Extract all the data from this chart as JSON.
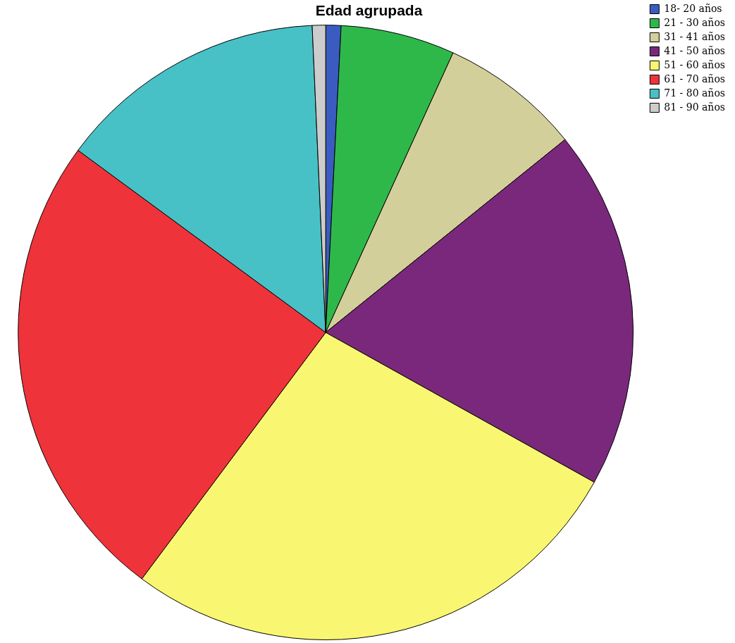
{
  "chart_data": {
    "type": "pie",
    "title": "Edad agrupada",
    "categories": [
      "18- 20 años",
      "21 - 30 años",
      "31 - 41 años",
      "41 - 50 años",
      "51 - 60 años",
      "61 - 70 años",
      "71 - 80 años",
      "81 - 90 años"
    ],
    "values": [
      0.8,
      6.0,
      7.4,
      18.9,
      27.1,
      24.9,
      14.2,
      0.7
    ],
    "colors": [
      "#3a5cc0",
      "#2fb84a",
      "#d3cf9a",
      "#7a287c",
      "#f9f771",
      "#ef333a",
      "#48c1c6",
      "#cccccc"
    ],
    "legend": "top right"
  }
}
